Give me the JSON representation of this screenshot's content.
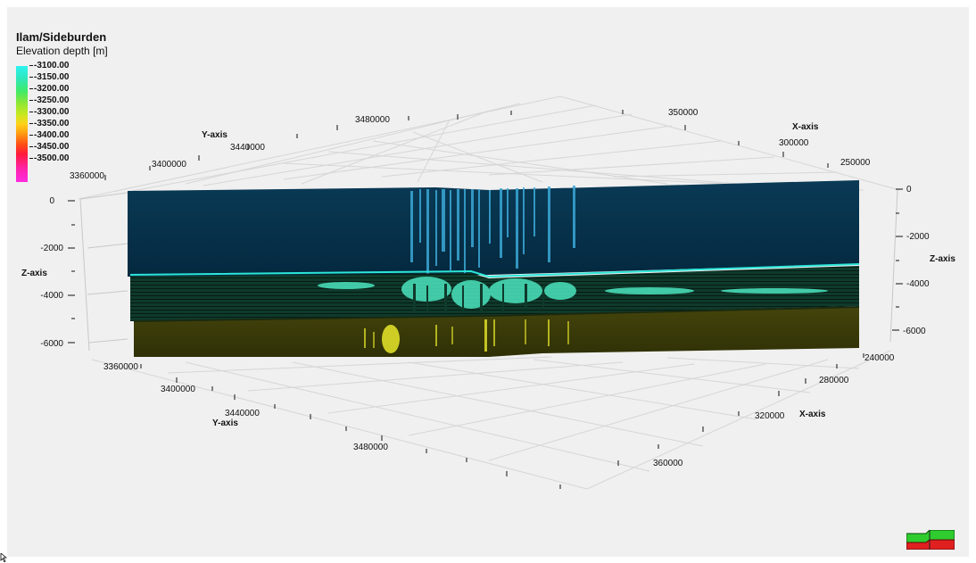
{
  "legend": {
    "title": "Ilam/Sideburden",
    "subtitle": "Elevation depth [m]",
    "ticks": [
      "-3100.00",
      "-3150.00",
      "-3200.00",
      "-3250.00",
      "-3300.00",
      "-3350.00",
      "-3400.00",
      "-3450.00",
      "-3500.00"
    ]
  },
  "axes": {
    "y_axis_label": "Y-axis",
    "x_axis_label": "X-axis",
    "z_axis_label": "Z-axis",
    "top_y_ticks": [
      "3360000",
      "3400000",
      "3440000",
      "3480000"
    ],
    "top_x_ticks": [
      "350000",
      "300000",
      "250000"
    ],
    "bottom_y_ticks": [
      "3360000",
      "3400000",
      "3440000",
      "3480000"
    ],
    "bottom_x_ticks": [
      "240000",
      "280000",
      "320000",
      "360000"
    ],
    "left_z_ticks": [
      "0",
      "-2000",
      "-4000",
      "-6000"
    ],
    "right_z_ticks": [
      "0",
      "-2000",
      "-4000",
      "-6000"
    ]
  },
  "colors": {
    "background": "#f0f0f0",
    "upper_layer": "#05304a",
    "middle_layer": "#0f3d2d",
    "lower_layer": "#3a3a0a",
    "cyan_horizon": "#2be6d8",
    "yellow_horizon": "#e0e020"
  },
  "icons": {
    "orientation": "orientation-cube-icon",
    "pointer": "mouse-pointer-icon"
  }
}
